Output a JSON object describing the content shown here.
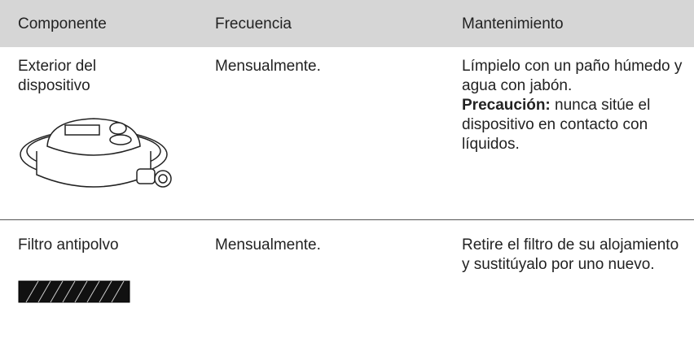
{
  "table": {
    "headers": [
      "Componente",
      "Frecuencia",
      "Mantenimiento"
    ],
    "rows": [
      {
        "component": "Exterior del dispositivo",
        "frequency": "Mensualmente.",
        "maintenance": "Límpielo con un paño húmedo y agua con jabón.",
        "caution_label": "Precaución:",
        "caution_text": "nunca sitúe el dispositivo en contacto con líquidos."
      },
      {
        "component": "Filtro antipolvo",
        "frequency": "Mensualmente.",
        "maintenance": "Retire el filtro de su alojamiento y sustitúyalo por uno nuevo."
      }
    ]
  }
}
